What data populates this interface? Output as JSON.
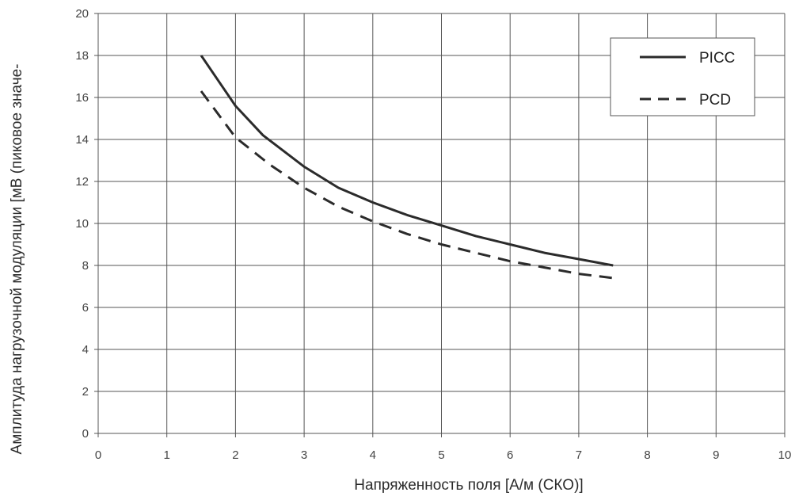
{
  "chart_data": {
    "type": "line",
    "xlabel": "Напряженность поля [А/м (СКО)]",
    "ylabel": "Амплитуда нагрузочной модуляции [мВ (пиковое значе-",
    "xlim": [
      0,
      10
    ],
    "ylim": [
      0,
      20
    ],
    "x_ticks": [
      "0",
      "1",
      "2",
      "3",
      "4",
      "5",
      "6",
      "7",
      "8",
      "9",
      "10"
    ],
    "y_ticks": [
      "0",
      "2",
      "4",
      "6",
      "8",
      "10",
      "12",
      "14",
      "16",
      "18",
      "20"
    ],
    "grid": true,
    "legend": {
      "placement": "top-right"
    },
    "series": [
      {
        "name": "PICC",
        "style": "solid",
        "color": "#2b2b2b",
        "x": [
          1.5,
          1.75,
          2.0,
          2.4,
          3.0,
          3.5,
          4.0,
          4.5,
          5.0,
          5.5,
          6.0,
          6.5,
          7.0,
          7.5
        ],
        "y": [
          18.0,
          16.8,
          15.6,
          14.2,
          12.7,
          11.7,
          11.0,
          10.4,
          9.9,
          9.4,
          9.0,
          8.6,
          8.3,
          8.0
        ]
      },
      {
        "name": "PCD",
        "style": "dashed",
        "color": "#2b2b2b",
        "x": [
          1.5,
          1.75,
          2.0,
          2.5,
          3.0,
          3.5,
          4.0,
          4.5,
          5.0,
          5.5,
          6.0,
          6.5,
          7.0,
          7.5
        ],
        "y": [
          16.3,
          15.2,
          14.1,
          12.8,
          11.7,
          10.8,
          10.1,
          9.5,
          9.0,
          8.6,
          8.2,
          7.9,
          7.6,
          7.4
        ]
      }
    ]
  }
}
